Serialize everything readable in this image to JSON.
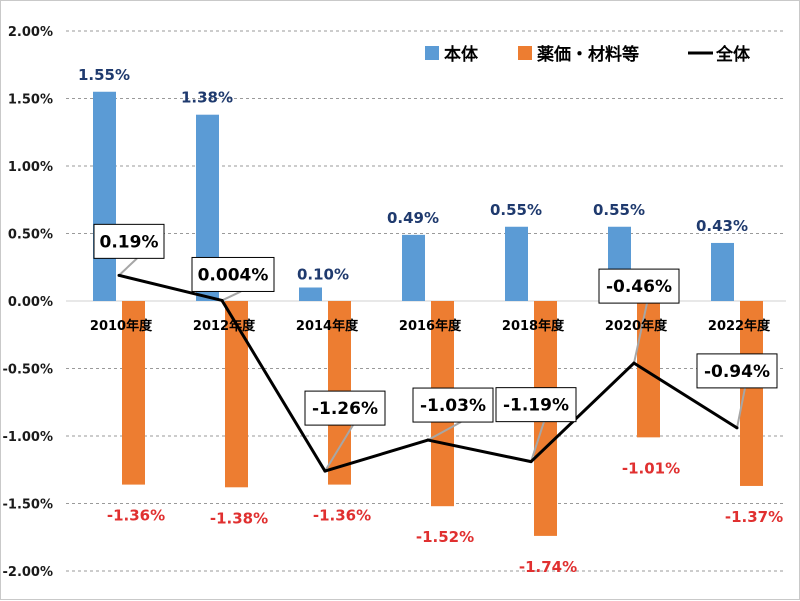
{
  "chart_data": {
    "type": "bar",
    "categories": [
      "2010年度",
      "2012年度",
      "2014年度",
      "2016年度",
      "2018年度",
      "2020年度",
      "2022年度"
    ],
    "ylim": [
      -2.0,
      2.0
    ],
    "yticks": [
      "2.00%",
      "1.50%",
      "1.00%",
      "0.50%",
      "0.00%",
      "-0.50%",
      "-1.00%",
      "-1.50%",
      "-2.00%"
    ],
    "ytick_values": [
      2.0,
      1.5,
      1.0,
      0.5,
      0.0,
      -0.5,
      -1.0,
      -1.5,
      -2.0
    ],
    "grid": true,
    "legend_position": "top-right",
    "series": [
      {
        "name": "本体",
        "kind": "bar",
        "color": "#5b9bd5",
        "values": [
          1.55,
          1.38,
          0.1,
          0.49,
          0.55,
          0.55,
          0.43
        ],
        "labels": [
          "1.55%",
          "1.38%",
          "0.10%",
          "0.49%",
          "0.55%",
          "0.55%",
          "0.43%"
        ]
      },
      {
        "name": "薬価・材料等",
        "kind": "bar",
        "color": "#ed7d31",
        "values": [
          -1.36,
          -1.38,
          -1.36,
          -1.52,
          -1.74,
          -1.01,
          -1.37
        ],
        "labels": [
          "-1.36%",
          "-1.38%",
          "-1.36%",
          "-1.52%",
          "-1.74%",
          "-1.01%",
          "-1.37%"
        ]
      },
      {
        "name": "全体",
        "kind": "line",
        "color": "#000000",
        "values": [
          0.19,
          0.004,
          -1.26,
          -1.03,
          -1.19,
          -0.46,
          -0.94
        ],
        "labels": [
          "0.19%",
          "0.004%",
          "-1.26%",
          "-1.03%",
          "-1.19%",
          "-0.46%",
          "-0.94%"
        ]
      }
    ]
  }
}
